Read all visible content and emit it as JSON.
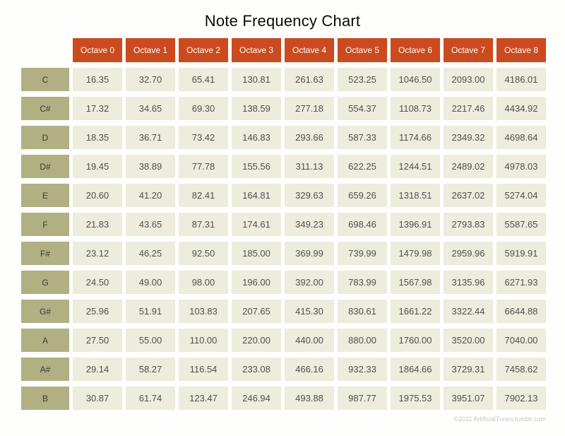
{
  "title": "Note Frequency Chart",
  "footer": "©2011 ArtificialTunes.tumblr.com",
  "colors": {
    "header_bg": "#cb4a1e",
    "header_text": "#ffffff",
    "note_bg": "#b0b083",
    "note_text": "#3b3b2f",
    "cell_bg": "#edecdd",
    "cell_text": "#50504a",
    "title_text": "#0a0a0a",
    "footer_text": "#c2cac4",
    "page_bg": "#fefefc"
  },
  "chart_data": {
    "type": "table",
    "title": "Note Frequency Chart",
    "categories": [
      "Octave 0",
      "Octave 1",
      "Octave 2",
      "Octave 3",
      "Octave 4",
      "Octave 5",
      "Octave 6",
      "Octave 7",
      "Octave 8"
    ],
    "rows": [
      {
        "note": "C",
        "values": [
          "16.35",
          "32.70",
          "65.41",
          "130.81",
          "261.63",
          "523.25",
          "1046.50",
          "2093.00",
          "4186.01"
        ]
      },
      {
        "note": "C#",
        "values": [
          "17.32",
          "34.65",
          "69.30",
          "138.59",
          "277.18",
          "554.37",
          "1108.73",
          "2217.46",
          "4434.92"
        ]
      },
      {
        "note": "D",
        "values": [
          "18.35",
          "36.71",
          "73.42",
          "146.83",
          "293.66",
          "587.33",
          "1174.66",
          "2349.32",
          "4698.64"
        ]
      },
      {
        "note": "D#",
        "values": [
          "19.45",
          "38.89",
          "77.78",
          "155.56",
          "311.13",
          "622.25",
          "1244.51",
          "2489.02",
          "4978.03"
        ]
      },
      {
        "note": "E",
        "values": [
          "20.60",
          "41.20",
          "82.41",
          "164.81",
          "329.63",
          "659.26",
          "1318.51",
          "2637.02",
          "5274.04"
        ]
      },
      {
        "note": "F",
        "values": [
          "21.83",
          "43.65",
          "87.31",
          "174.61",
          "349.23",
          "698.46",
          "1396.91",
          "2793.83",
          "5587.65"
        ]
      },
      {
        "note": "F#",
        "values": [
          "23.12",
          "46.25",
          "92.50",
          "185.00",
          "369.99",
          "739.99",
          "1479.98",
          "2959.96",
          "5919.91"
        ]
      },
      {
        "note": "G",
        "values": [
          "24.50",
          "49.00",
          "98.00",
          "196.00",
          "392.00",
          "783.99",
          "1567.98",
          "3135.96",
          "6271.93"
        ]
      },
      {
        "note": "G#",
        "values": [
          "25.96",
          "51.91",
          "103.83",
          "207.65",
          "415.30",
          "830.61",
          "1661.22",
          "3322.44",
          "6644.88"
        ]
      },
      {
        "note": "A",
        "values": [
          "27.50",
          "55.00",
          "110.00",
          "220.00",
          "440.00",
          "880.00",
          "1760.00",
          "3520.00",
          "7040.00"
        ]
      },
      {
        "note": "A#",
        "values": [
          "29.14",
          "58.27",
          "116.54",
          "233.08",
          "466.16",
          "932.33",
          "1864.66",
          "3729.31",
          "7458.62"
        ]
      },
      {
        "note": "B",
        "values": [
          "30.87",
          "61.74",
          "123.47",
          "246.94",
          "493.88",
          "987.77",
          "1975.53",
          "3951.07",
          "7902.13"
        ]
      }
    ]
  }
}
